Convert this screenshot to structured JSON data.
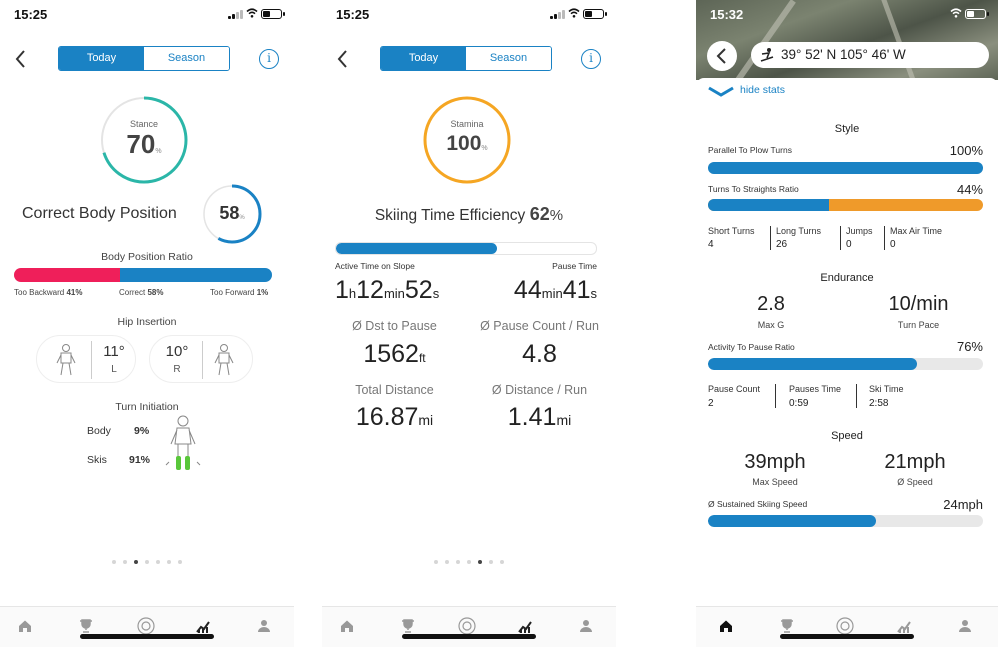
{
  "status": {
    "time1": "15:25",
    "time2": "15:25",
    "time3": "15:32"
  },
  "header": {
    "today": "Today",
    "season": "Season",
    "info": "i"
  },
  "p1": {
    "stance_label": "Stance",
    "stance_value": "70",
    "stance_unit": "%",
    "stance_pct": 70,
    "cbp_label": "Correct Body Position",
    "cbp_value": "58",
    "cbp_unit": "%",
    "cbp_pct": 58,
    "ratio_title": "Body Position Ratio",
    "ratio": {
      "backward_pct": 41,
      "correct_pct": 58,
      "forward_pct": 1
    },
    "ratio_labels": {
      "backward": "Too Backward",
      "backward_val": "41%",
      "correct": "Correct",
      "correct_val": "58%",
      "forward": "Too Forward",
      "forward_val": "1%"
    },
    "hip_title": "Hip Insertion",
    "hip_left": "11°",
    "hip_left_side": "L",
    "hip_right": "10°",
    "hip_right_side": "R",
    "turn_title": "Turn Initiation",
    "body_label": "Body",
    "body_val": "9%",
    "skis_label": "Skis",
    "skis_val": "91%"
  },
  "p2": {
    "stamina_label": "Stamina",
    "stamina_value": "100",
    "stamina_unit": "%",
    "stamina_pct": 100,
    "efficiency_label": "Skiing Time Efficiency",
    "efficiency_value": "62",
    "efficiency_unit": "%",
    "efficiency_pct": 62,
    "active_label": "Active Time on Slope",
    "pause_label": "Pause Time",
    "active_h": "1",
    "active_h_unit": "h",
    "active_min": "12",
    "active_min_unit": "min",
    "active_s": "52",
    "active_s_unit": "s",
    "pause_min": "44",
    "pause_min_unit": "min",
    "pause_s": "41",
    "pause_s_unit": "s",
    "dst_label": "Ø Dst to Pause",
    "dst_value": "1562",
    "dst_unit": "ft",
    "pcount_label": "Ø Pause Count / Run",
    "pcount_value": "4.8",
    "total_label": "Total Distance",
    "total_value": "16.87",
    "total_unit": "mi",
    "run_label": "Ø Distance / Run",
    "run_value": "1.41",
    "run_unit": "mi"
  },
  "p3": {
    "coords": "39° 52' N 105° 46' W",
    "hide_stats": "hide stats",
    "style_title": "Style",
    "parallel_label": "Parallel To Plow Turns",
    "parallel_val": "100%",
    "parallel_pct": 100,
    "turns_label": "Turns To Straights Ratio",
    "turns_val": "44%",
    "turns_pct": 44,
    "short_label": "Short Turns",
    "short_val": "4",
    "long_label": "Long Turns",
    "long_val": "26",
    "jumps_label": "Jumps",
    "jumps_val": "0",
    "air_label": "Max Air Time",
    "air_val": "0",
    "endurance_title": "Endurance",
    "maxg_val": "2.8",
    "maxg_label": "Max G",
    "pace_val": "10/min",
    "pace_label": "Turn Pace",
    "activity_label": "Activity To Pause Ratio",
    "activity_val": "76%",
    "activity_pct": 76,
    "pcount_label": "Pause Count",
    "pcount_val": "2",
    "ptime_label": "Pauses Time",
    "ptime_val": "0:59",
    "skitime_label": "Ski Time",
    "skitime_val": "2:58",
    "speed_title": "Speed",
    "maxspeed_val": "39mph",
    "maxspeed_label": "Max Speed",
    "avgspeed_val": "21mph",
    "avgspeed_label": "Ø Speed",
    "sustained_label": "Ø Sustained Skiing Speed",
    "sustained_val": "24mph",
    "sustained_pct": 61
  },
  "colors": {
    "blue": "#1a82c4",
    "teal": "#2bb6a8",
    "orange": "#f5a623",
    "pink": "#ef1f5a",
    "green": "#59c73a"
  },
  "icons": [
    "chevron-left-icon",
    "info-icon",
    "home-icon",
    "trophy-icon",
    "gear-badge-icon",
    "stats-icon",
    "profile-icon",
    "skier-icon",
    "chevron-down-icon"
  ]
}
